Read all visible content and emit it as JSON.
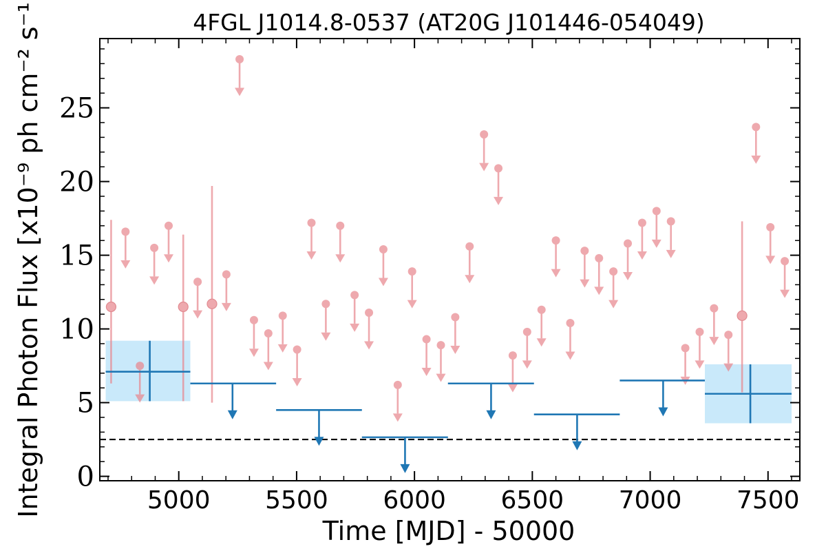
{
  "chart_data": {
    "type": "scatter",
    "title": "4FGL J1014.8-0537 (AT20G J101446-054049)",
    "xlabel": "Time [MJD] - 50000",
    "ylabel": "Integral Photon Flux [x10⁻⁹ ph cm⁻² s⁻¹]",
    "xlim": [
      4665,
      7635
    ],
    "ylim": [
      -0.3,
      29.7
    ],
    "x_ticks": [
      5000,
      5500,
      6000,
      6500,
      7000,
      7500
    ],
    "x_tick_labels": [
      "5000",
      "5500",
      "6000",
      "6500",
      "7000",
      "7500"
    ],
    "y_ticks": [
      0,
      5,
      10,
      15,
      20,
      25
    ],
    "y_tick_labels": [
      "0",
      "5",
      "10",
      "15",
      "20",
      "25"
    ],
    "grid": false,
    "colors": {
      "short": "#e8888f",
      "long": "#1f77b4",
      "band": "#c9e9fa",
      "reference": "#000000"
    },
    "reference_line": {
      "y": 2.5,
      "style": "dashed"
    },
    "short_detections": [
      {
        "x": 4713,
        "y": 11.5,
        "ylow": 6.3,
        "yhigh": 17.4
      },
      {
        "x": 5019,
        "y": 11.5,
        "ylow": 5.1,
        "yhigh": 16.4
      },
      {
        "x": 5141,
        "y": 11.7,
        "ylow": 5.0,
        "yhigh": 19.7
      },
      {
        "x": 7390,
        "y": 10.9,
        "ylow": 5.7,
        "yhigh": 17.3
      }
    ],
    "short_upper_limits": [
      {
        "x": 4774,
        "y": 16.6
      },
      {
        "x": 4835,
        "y": 7.5
      },
      {
        "x": 4896,
        "y": 15.5
      },
      {
        "x": 4957,
        "y": 17.0
      },
      {
        "x": 5080,
        "y": 13.2
      },
      {
        "x": 5202,
        "y": 13.7
      },
      {
        "x": 5258,
        "y": 28.3
      },
      {
        "x": 5319,
        "y": 10.6
      },
      {
        "x": 5380,
        "y": 9.7
      },
      {
        "x": 5441,
        "y": 10.9
      },
      {
        "x": 5502,
        "y": 8.6
      },
      {
        "x": 5563,
        "y": 17.2
      },
      {
        "x": 5624,
        "y": 11.7
      },
      {
        "x": 5685,
        "y": 17.0
      },
      {
        "x": 5746,
        "y": 12.3
      },
      {
        "x": 5807,
        "y": 11.1
      },
      {
        "x": 5868,
        "y": 15.4
      },
      {
        "x": 5929,
        "y": 6.2
      },
      {
        "x": 5990,
        "y": 13.9
      },
      {
        "x": 6051,
        "y": 9.3
      },
      {
        "x": 6112,
        "y": 8.9
      },
      {
        "x": 6173,
        "y": 10.8
      },
      {
        "x": 6234,
        "y": 15.6
      },
      {
        "x": 6295,
        "y": 23.2
      },
      {
        "x": 6356,
        "y": 20.9
      },
      {
        "x": 6417,
        "y": 8.2
      },
      {
        "x": 6478,
        "y": 9.8
      },
      {
        "x": 6539,
        "y": 11.3
      },
      {
        "x": 6600,
        "y": 16.0
      },
      {
        "x": 6661,
        "y": 10.4
      },
      {
        "x": 6722,
        "y": 15.3
      },
      {
        "x": 6783,
        "y": 14.8
      },
      {
        "x": 6844,
        "y": 13.9
      },
      {
        "x": 6905,
        "y": 15.8
      },
      {
        "x": 6966,
        "y": 17.2
      },
      {
        "x": 7027,
        "y": 18.0
      },
      {
        "x": 7088,
        "y": 17.3
      },
      {
        "x": 7149,
        "y": 8.7
      },
      {
        "x": 7210,
        "y": 9.8
      },
      {
        "x": 7271,
        "y": 11.4
      },
      {
        "x": 7332,
        "y": 9.6
      },
      {
        "x": 7449,
        "y": 23.7
      },
      {
        "x": 7510,
        "y": 16.9
      },
      {
        "x": 7571,
        "y": 14.6
      }
    ],
    "long_detections": [
      {
        "x": 4877,
        "xmin": 4690,
        "xmax": 5049,
        "y": 7.1,
        "ylow": 5.1,
        "yhigh": 9.2
      },
      {
        "x": 7425,
        "xmin": 7232,
        "xmax": 7600,
        "y": 5.6,
        "ylow": 3.6,
        "yhigh": 7.6
      }
    ],
    "long_upper_limits": [
      {
        "x": 5228,
        "xmin": 5049,
        "xmax": 5413,
        "y": 6.3
      },
      {
        "x": 5595,
        "xmin": 5413,
        "xmax": 5777,
        "y": 4.5
      },
      {
        "x": 5960,
        "xmin": 5777,
        "xmax": 6142,
        "y": 2.65
      },
      {
        "x": 6325,
        "xmin": 6142,
        "xmax": 6507,
        "y": 6.3
      },
      {
        "x": 6690,
        "xmin": 6507,
        "xmax": 6871,
        "y": 4.2
      },
      {
        "x": 7055,
        "xmin": 6871,
        "xmax": 7232,
        "y": 6.5
      }
    ]
  }
}
